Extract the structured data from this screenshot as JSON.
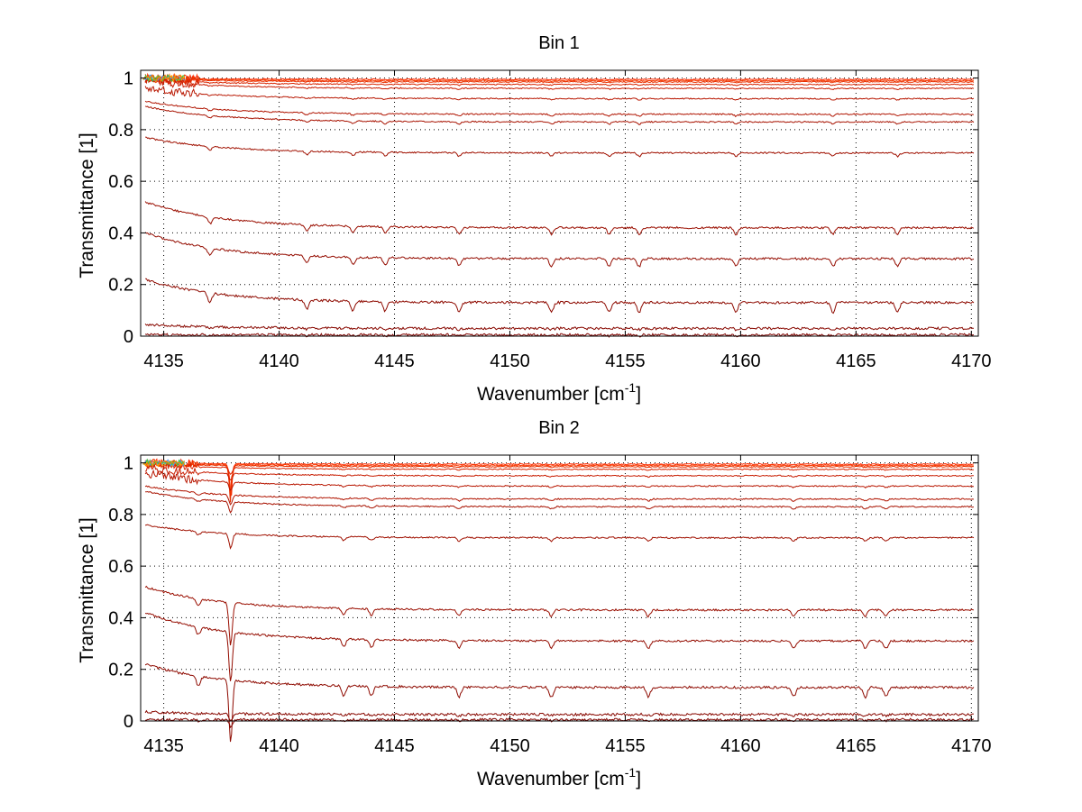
{
  "chart_data": [
    {
      "type": "line",
      "title": "Bin 1",
      "xlabel": "Wavenumber [cm",
      "xlabel_sup": "-1",
      "xlabel_end": "]",
      "ylabel": "Transmittance [1]",
      "xlim": [
        4134,
        4170.3
      ],
      "ylim": [
        0,
        1.03
      ],
      "xticks": [
        4135,
        4140,
        4145,
        4150,
        4155,
        4160,
        4165,
        4170
      ],
      "yticks": [
        0,
        0.2,
        0.4,
        0.6,
        0.8,
        1
      ],
      "ytick_labels": [
        "0",
        "0.2",
        "0.4",
        "0.6",
        "0.8",
        "1"
      ],
      "grid": true,
      "series_levels": [
        0.995,
        0.99,
        0.985,
        0.975,
        0.96,
        0.92,
        0.86,
        0.83,
        0.71,
        0.42,
        0.3,
        0.13,
        0.03,
        0.005
      ],
      "series_start_offsets": [
        0.005,
        0.01,
        0.015,
        0.02,
        0.03,
        0.04,
        0.05,
        0.06,
        0.06,
        0.1,
        0.1,
        0.09,
        0.015,
        0.0
      ],
      "absorption_lines": [
        4137.0,
        4141.2,
        4143.2,
        4144.6,
        4147.8,
        4151.8,
        4154.3,
        4155.6,
        4159.8,
        4164.0,
        4166.8
      ],
      "strong_feature": null
    },
    {
      "type": "line",
      "title": "Bin 2",
      "xlabel": "Wavenumber [cm",
      "xlabel_sup": "-1",
      "xlabel_end": "]",
      "ylabel": "Transmittance [1]",
      "xlim": [
        4134,
        4170.3
      ],
      "ylim": [
        0,
        1.03
      ],
      "xticks": [
        4135,
        4140,
        4145,
        4150,
        4155,
        4160,
        4165,
        4170
      ],
      "yticks": [
        0,
        0.2,
        0.4,
        0.6,
        0.8,
        1
      ],
      "ytick_labels": [
        "0",
        "0.2",
        "0.4",
        "0.6",
        "0.8",
        "1"
      ],
      "grid": true,
      "series_levels": [
        0.995,
        0.99,
        0.985,
        0.975,
        0.95,
        0.91,
        0.86,
        0.83,
        0.71,
        0.43,
        0.31,
        0.13,
        0.025,
        0.005
      ],
      "series_start_offsets": [
        0.005,
        0.01,
        0.015,
        0.02,
        0.03,
        0.05,
        0.05,
        0.06,
        0.05,
        0.09,
        0.11,
        0.09,
        0.01,
        0.0
      ],
      "absorption_lines": [
        4136.5,
        4137.9,
        4142.8,
        4144.0,
        4147.8,
        4151.8,
        4156.0,
        4162.3,
        4165.4,
        4166.3
      ],
      "strong_feature": {
        "x": 4137.9,
        "depth": 0.22
      }
    }
  ]
}
